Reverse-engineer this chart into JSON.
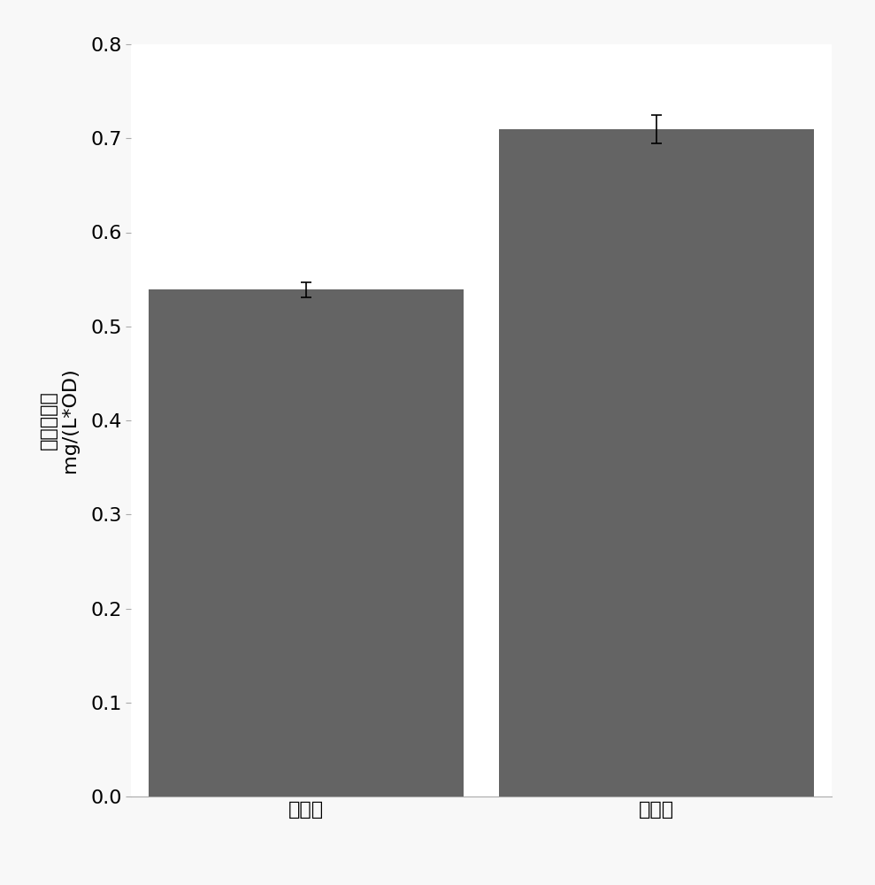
{
  "categories": [
    "野生型",
    "实验组"
  ],
  "values": [
    0.539,
    0.71
  ],
  "errors": [
    0.008,
    0.015
  ],
  "bar_color": "#646464",
  "bar_width": 0.45,
  "ylabel_line1": "脂肪酸含量",
  "ylabel_line2": "mg/(L*OD)",
  "ylim": [
    0,
    0.8
  ],
  "yticks": [
    0,
    0.1,
    0.2,
    0.3,
    0.4,
    0.5,
    0.6,
    0.7,
    0.8
  ],
  "background_color": "#ffffff",
  "plot_bg_color": "#ffffff",
  "tick_fontsize": 16,
  "label_fontsize": 16,
  "error_capsize": 4,
  "error_color": "black",
  "error_linewidth": 1.2,
  "spine_color": "#aaaaaa",
  "x_positions": [
    0.25,
    0.75
  ]
}
